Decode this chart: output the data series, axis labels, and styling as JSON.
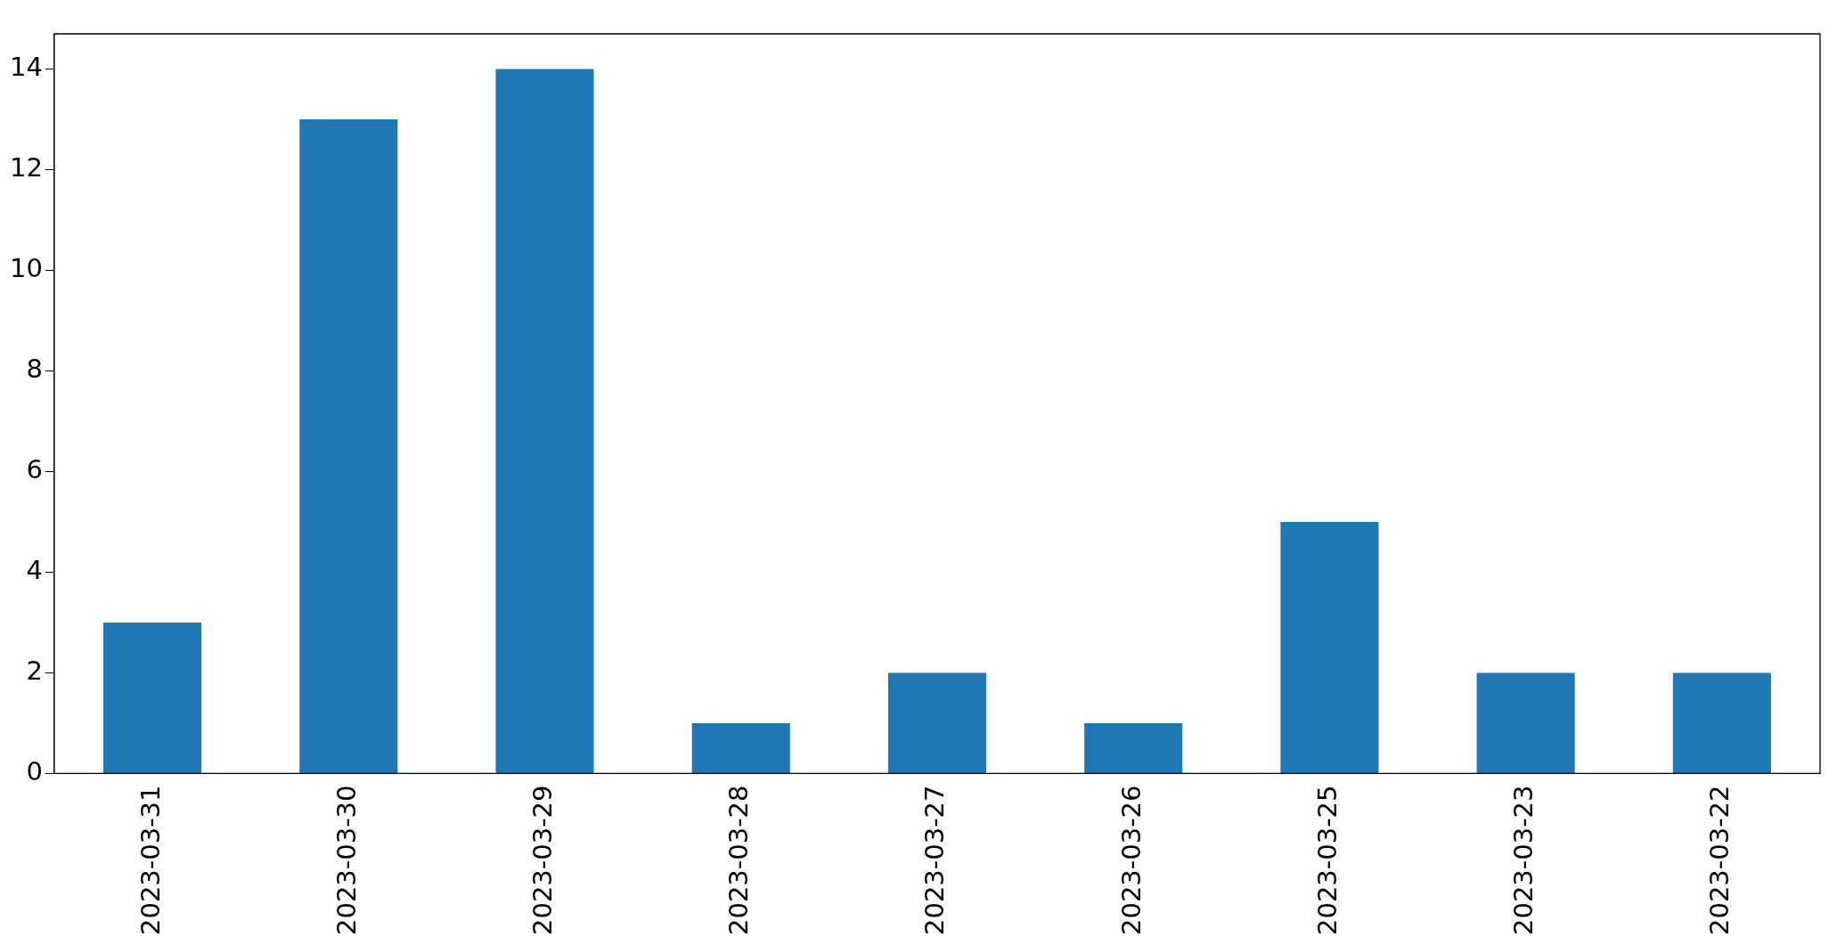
{
  "chart_data": {
    "type": "bar",
    "categories": [
      "2023-03-31",
      "2023-03-30",
      "2023-03-29",
      "2023-03-28",
      "2023-03-27",
      "2023-03-26",
      "2023-03-25",
      "2023-03-23",
      "2023-03-22"
    ],
    "values": [
      3,
      13,
      14,
      1,
      2,
      1,
      5,
      2,
      2
    ],
    "color": "#1f77b4",
    "ylim": [
      0,
      14.7
    ],
    "yticks": [
      0,
      2,
      4,
      6,
      8,
      10,
      12,
      14
    ],
    "grid": false,
    "legend": false
  }
}
